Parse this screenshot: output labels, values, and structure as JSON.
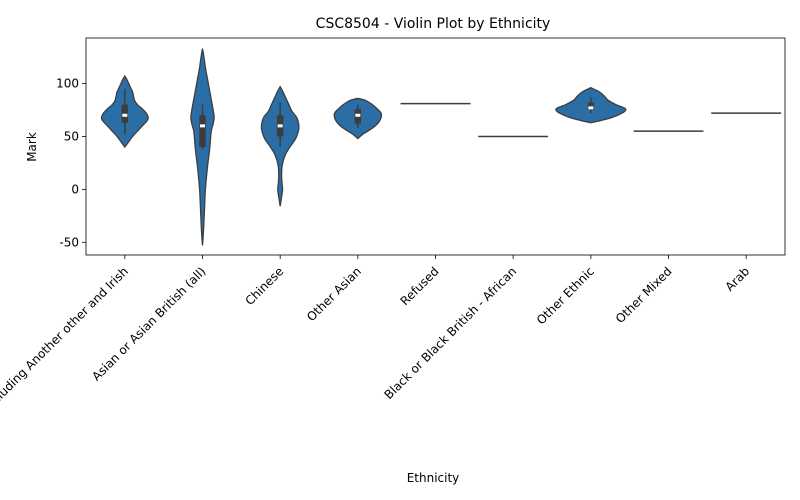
{
  "chart_data": {
    "type": "violin",
    "title": "CSC8504 - Violin Plot by Ethnicity",
    "xlabel": "Ethnicity",
    "ylabel": "Mark",
    "ylim": [
      -62,
      143
    ],
    "yticks": [
      "-50",
      "0",
      "50",
      "100"
    ],
    "grid": false,
    "color": "#2b6ea6",
    "categories": [
      "White including Another other and Irish",
      "Asian or Asian British (all)",
      "Chinese",
      "Other Asian",
      "Refused",
      "Black or Black British - African",
      "Other Ethnic",
      "Other Mixed",
      "Arab"
    ],
    "violins": [
      {
        "min": 40,
        "max": 107,
        "q1": 63,
        "median": 70,
        "q3": 80,
        "wlo": 52,
        "whi": 95,
        "profile": [
          [
            40,
            0
          ],
          [
            45,
            4
          ],
          [
            50,
            8
          ],
          [
            55,
            13
          ],
          [
            60,
            18
          ],
          [
            65,
            23
          ],
          [
            68,
            24
          ],
          [
            72,
            22
          ],
          [
            76,
            18
          ],
          [
            80,
            13
          ],
          [
            84,
            10
          ],
          [
            88,
            9
          ],
          [
            92,
            8
          ],
          [
            96,
            6
          ],
          [
            100,
            4
          ],
          [
            104,
            2
          ],
          [
            107,
            0
          ]
        ]
      },
      {
        "min": -53,
        "max": 133,
        "q1": 40,
        "median": 60,
        "q3": 70,
        "wlo": 38,
        "whi": 80,
        "profile": [
          [
            -53,
            0
          ],
          [
            -40,
            1
          ],
          [
            -20,
            2
          ],
          [
            0,
            3
          ],
          [
            20,
            5
          ],
          [
            35,
            7
          ],
          [
            45,
            8
          ],
          [
            55,
            9
          ],
          [
            62,
            11
          ],
          [
            68,
            12
          ],
          [
            75,
            11
          ],
          [
            85,
            9
          ],
          [
            95,
            7
          ],
          [
            105,
            5
          ],
          [
            115,
            3
          ],
          [
            125,
            1.5
          ],
          [
            133,
            0
          ]
        ]
      },
      {
        "min": -16,
        "max": 97,
        "q1": 50,
        "median": 60,
        "q3": 70,
        "wlo": 40,
        "whi": 82,
        "profile": [
          [
            -16,
            0
          ],
          [
            -10,
            1
          ],
          [
            -4,
            2
          ],
          [
            0,
            2.5
          ],
          [
            5,
            2
          ],
          [
            12,
            1.5
          ],
          [
            22,
            2
          ],
          [
            32,
            5
          ],
          [
            40,
            10
          ],
          [
            48,
            16
          ],
          [
            56,
            19
          ],
          [
            62,
            19
          ],
          [
            68,
            17
          ],
          [
            74,
            12
          ],
          [
            80,
            9
          ],
          [
            86,
            6
          ],
          [
            92,
            3
          ],
          [
            97,
            0
          ]
        ]
      },
      {
        "min": 48,
        "max": 86,
        "q1": 62,
        "median": 70,
        "q3": 76,
        "wlo": 58,
        "whi": 80,
        "profile": [
          [
            48,
            0
          ],
          [
            52,
            5
          ],
          [
            56,
            12
          ],
          [
            60,
            18
          ],
          [
            64,
            22
          ],
          [
            68,
            24
          ],
          [
            72,
            24
          ],
          [
            76,
            20
          ],
          [
            80,
            15
          ],
          [
            84,
            8
          ],
          [
            86,
            0
          ]
        ]
      },
      {
        "single": 81
      },
      {
        "single": 50
      },
      {
        "min": 63,
        "max": 96,
        "q1": 75,
        "median": 77,
        "q3": 82,
        "wlo": 72,
        "whi": 87,
        "profile": [
          [
            63,
            0
          ],
          [
            65,
            10
          ],
          [
            68,
            22
          ],
          [
            72,
            32
          ],
          [
            75,
            36
          ],
          [
            77,
            34
          ],
          [
            80,
            26
          ],
          [
            84,
            18
          ],
          [
            88,
            14
          ],
          [
            92,
            9
          ],
          [
            96,
            0
          ]
        ]
      },
      {
        "single": 55
      },
      {
        "single": 72
      }
    ]
  }
}
